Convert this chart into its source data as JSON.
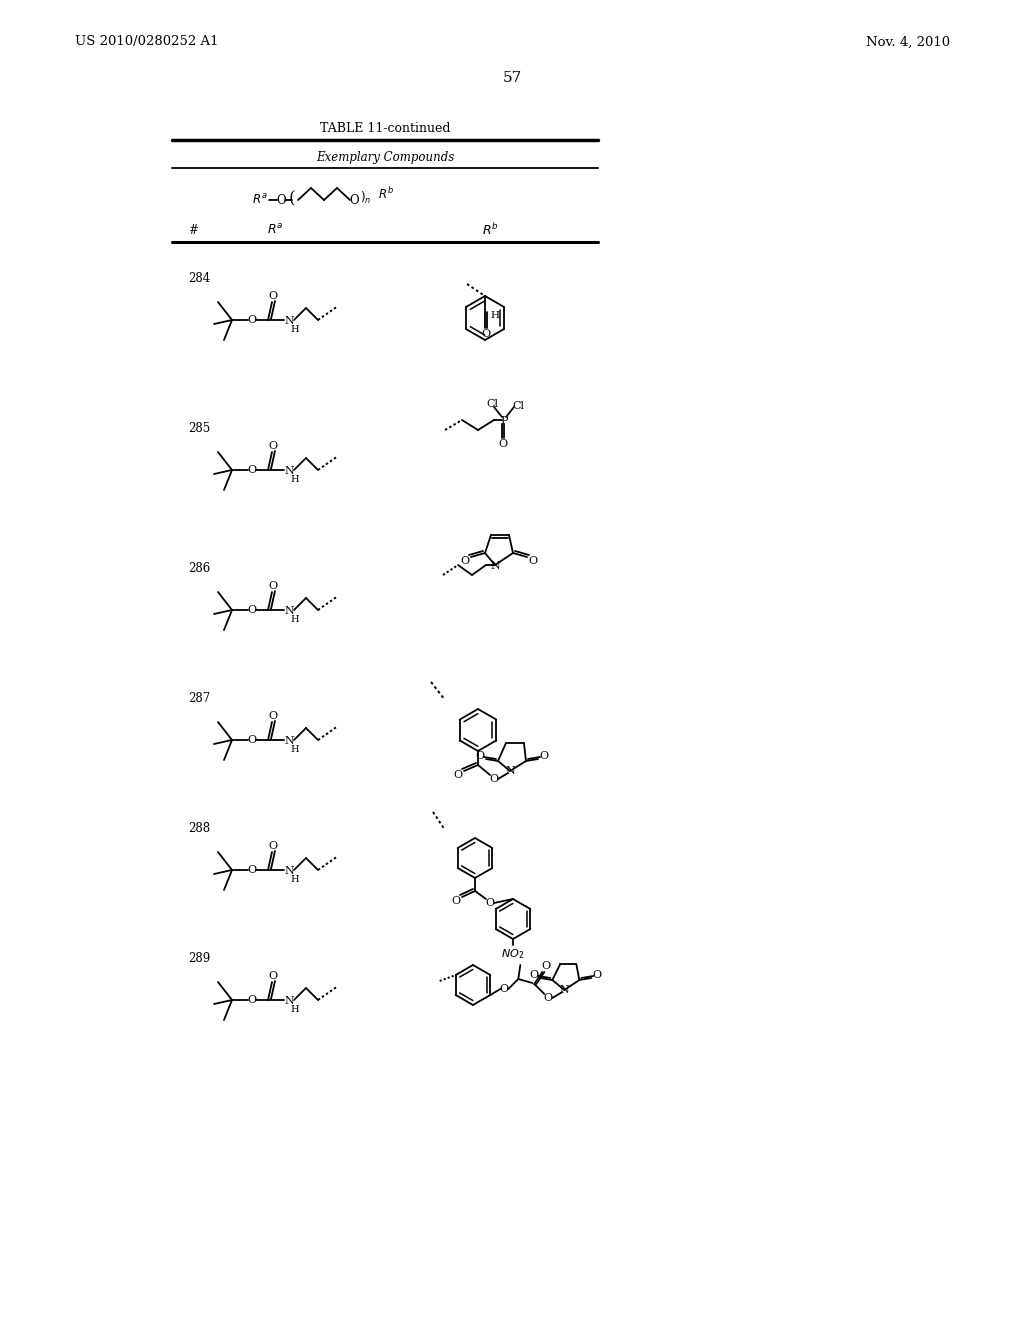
{
  "background_color": "#ffffff",
  "page_number": "57",
  "patent_left": "US 2010/0280252 A1",
  "patent_right": "Nov. 4, 2010",
  "table_title": "TABLE 11-continued",
  "table_subtitle": "Exemplary Compounds",
  "rows": [
    284,
    285,
    286,
    287,
    288,
    289
  ],
  "fig_width": 10.24,
  "fig_height": 13.2,
  "dpi": 100
}
